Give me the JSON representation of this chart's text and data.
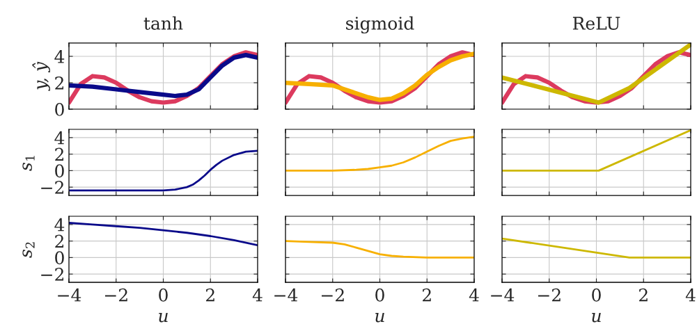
{
  "chart_data": [
    {
      "type": "line",
      "title": "tanh",
      "ylabel": "y, ŷ",
      "xlim": [
        -4,
        4
      ],
      "xticks": [
        -4,
        -2,
        0,
        2,
        4
      ],
      "ylim": [
        0,
        5
      ],
      "yticks": [
        0,
        2,
        4
      ],
      "grid": true,
      "tick_labels": "y",
      "series": [
        {
          "color": "#dc3a5e",
          "x": [
            -4,
            -3.5,
            -3,
            -2.5,
            -2,
            -1.5,
            -1,
            -0.5,
            0,
            0.5,
            1,
            1.5,
            2,
            2.5,
            3,
            3.5,
            4
          ],
          "values": [
            0.5,
            1.9,
            2.5,
            2.4,
            2.0,
            1.4,
            0.9,
            0.6,
            0.5,
            0.6,
            1.0,
            1.6,
            2.5,
            3.4,
            4.0,
            4.3,
            4.1
          ]
        },
        {
          "color": "#0a0a8a",
          "x": [
            -4,
            -3,
            -2,
            -1,
            0,
            0.5,
            1,
            1.5,
            2,
            2.5,
            3,
            3.5,
            4
          ],
          "values": [
            1.8,
            1.7,
            1.5,
            1.3,
            1.1,
            1.0,
            1.1,
            1.5,
            2.4,
            3.3,
            3.9,
            4.1,
            3.9
          ]
        }
      ]
    },
    {
      "type": "line",
      "title": "sigmoid",
      "xlim": [
        -4,
        4
      ],
      "xticks": [
        -4,
        -2,
        0,
        2,
        4
      ],
      "ylim": [
        0,
        5
      ],
      "yticks": [
        0,
        2,
        4
      ],
      "grid": true,
      "tick_labels": false,
      "series": [
        {
          "color": "#dc3a5e",
          "x": [
            -4,
            -3.5,
            -3,
            -2.5,
            -2,
            -1.5,
            -1,
            -0.5,
            0,
            0.5,
            1,
            1.5,
            2,
            2.5,
            3,
            3.5,
            4
          ],
          "values": [
            0.5,
            1.9,
            2.5,
            2.4,
            2.0,
            1.4,
            0.9,
            0.6,
            0.5,
            0.6,
            1.0,
            1.6,
            2.5,
            3.4,
            4.0,
            4.3,
            4.1
          ]
        },
        {
          "color": "#f7b000",
          "x": [
            -4,
            -3,
            -2,
            -1.5,
            -1,
            -0.5,
            0,
            0.5,
            1,
            1.5,
            2,
            2.5,
            3,
            3.5,
            4
          ],
          "values": [
            2.0,
            1.9,
            1.8,
            1.5,
            1.2,
            0.9,
            0.7,
            0.8,
            1.2,
            1.8,
            2.6,
            3.2,
            3.7,
            4.0,
            4.2
          ]
        }
      ]
    },
    {
      "type": "line",
      "title": "ReLU",
      "xlim": [
        -4,
        4
      ],
      "xticks": [
        -4,
        -2,
        0,
        2,
        4
      ],
      "ylim": [
        0,
        5
      ],
      "yticks": [
        0,
        2,
        4
      ],
      "grid": true,
      "tick_labels": false,
      "series": [
        {
          "color": "#dc3a5e",
          "x": [
            -4,
            -3.5,
            -3,
            -2.5,
            -2,
            -1.5,
            -1,
            -0.5,
            0,
            0.5,
            1,
            1.5,
            2,
            2.5,
            3,
            3.5,
            4
          ],
          "values": [
            0.5,
            1.9,
            2.5,
            2.4,
            2.0,
            1.4,
            0.9,
            0.6,
            0.5,
            0.6,
            1.0,
            1.6,
            2.5,
            3.4,
            4.0,
            4.3,
            4.1
          ]
        },
        {
          "color": "#cdb800",
          "x": [
            -4,
            0.1,
            1.4,
            4
          ],
          "values": [
            2.4,
            0.5,
            1.6,
            4.9
          ]
        }
      ]
    },
    {
      "type": "line",
      "ylabel": "s$_{1}$",
      "xlim": [
        -4,
        4
      ],
      "xticks": [
        -4,
        -2,
        0,
        2,
        4
      ],
      "ylim": [
        -3,
        5
      ],
      "yticks": [
        -2,
        0,
        2,
        4
      ],
      "grid": true,
      "tick_labels": "y",
      "series": [
        {
          "color": "#0a0a8a",
          "x": [
            -4,
            -2,
            -1,
            0,
            0.5,
            1,
            1.25,
            1.5,
            1.75,
            2,
            2.25,
            2.5,
            3,
            3.5,
            4
          ],
          "values": [
            -2.4,
            -2.4,
            -2.4,
            -2.4,
            -2.3,
            -2.0,
            -1.7,
            -1.2,
            -0.6,
            0.1,
            0.7,
            1.2,
            1.9,
            2.3,
            2.4
          ]
        }
      ]
    },
    {
      "type": "line",
      "xlim": [
        -4,
        4
      ],
      "xticks": [
        -4,
        -2,
        0,
        2,
        4
      ],
      "ylim": [
        -3,
        5
      ],
      "yticks": [
        -2,
        0,
        2,
        4
      ],
      "grid": true,
      "tick_labels": false,
      "series": [
        {
          "color": "#f7b000",
          "x": [
            -4,
            -2,
            -1,
            -0.5,
            0,
            0.5,
            1,
            1.5,
            2,
            2.5,
            3,
            3.5,
            4
          ],
          "values": [
            0,
            0,
            0.1,
            0.2,
            0.4,
            0.6,
            1.0,
            1.6,
            2.3,
            3.0,
            3.6,
            3.9,
            4.1
          ]
        }
      ]
    },
    {
      "type": "line",
      "xlim": [
        -4,
        4
      ],
      "xticks": [
        -4,
        -2,
        0,
        2,
        4
      ],
      "ylim": [
        -3,
        5
      ],
      "yticks": [
        -2,
        0,
        2,
        4
      ],
      "grid": true,
      "tick_labels": false,
      "series": [
        {
          "color": "#cdb800",
          "x": [
            -4,
            0.1,
            4
          ],
          "values": [
            0,
            0,
            4.9
          ]
        }
      ]
    },
    {
      "type": "line",
      "ylabel": "s$_{2}$",
      "xlabel": "u",
      "xlim": [
        -4,
        4
      ],
      "xticks": [
        -4,
        -2,
        0,
        2,
        4
      ],
      "ylim": [
        -3,
        5
      ],
      "yticks": [
        -2,
        0,
        2,
        4
      ],
      "grid": true,
      "series": [
        {
          "color": "#0a0a8a",
          "x": [
            -4,
            -3,
            -2,
            -1,
            0,
            1,
            2,
            3,
            4
          ],
          "values": [
            4.2,
            4.0,
            3.8,
            3.6,
            3.3,
            3.0,
            2.6,
            2.1,
            1.5
          ]
        }
      ]
    },
    {
      "type": "line",
      "xlabel": "u",
      "xlim": [
        -4,
        4
      ],
      "xticks": [
        -4,
        -2,
        0,
        2,
        4
      ],
      "ylim": [
        -3,
        5
      ],
      "yticks": [
        -2,
        0,
        2,
        4
      ],
      "grid": true,
      "tick_labels": "x",
      "series": [
        {
          "color": "#f7b000",
          "x": [
            -4,
            -3,
            -2,
            -1.5,
            -1,
            -0.5,
            0,
            0.5,
            1,
            2,
            3,
            4
          ],
          "values": [
            2.0,
            1.9,
            1.8,
            1.6,
            1.2,
            0.8,
            0.4,
            0.2,
            0.1,
            0,
            0,
            0
          ]
        }
      ]
    },
    {
      "type": "line",
      "xlabel": "u",
      "xlim": [
        -4,
        4
      ],
      "xticks": [
        -4,
        -2,
        0,
        2,
        4
      ],
      "ylim": [
        -3,
        5
      ],
      "yticks": [
        -2,
        0,
        2,
        4
      ],
      "grid": true,
      "tick_labels": "x",
      "series": [
        {
          "color": "#cdb800",
          "x": [
            -4,
            1.4,
            4
          ],
          "values": [
            2.3,
            0,
            0
          ]
        }
      ]
    }
  ]
}
